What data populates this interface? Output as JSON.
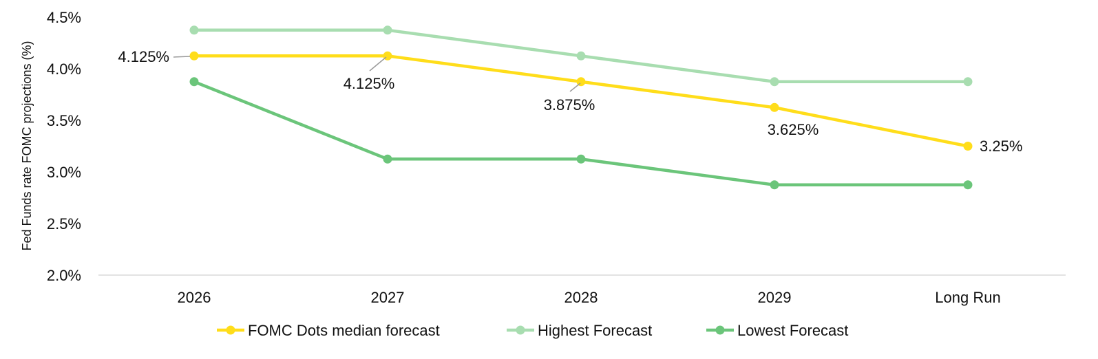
{
  "chart_data": {
    "type": "line",
    "categories": [
      "2026",
      "2027",
      "2028",
      "2029",
      "Long Run"
    ],
    "series": [
      {
        "name": "FOMC Dots median forecast",
        "values": [
          4.125,
          4.125,
          3.875,
          3.625,
          3.25
        ],
        "color": "#FFDD1A"
      },
      {
        "name": "Highest Forecast",
        "values": [
          4.375,
          4.375,
          4.125,
          3.875,
          3.875
        ],
        "color": "#A8DDB0"
      },
      {
        "name": "Lowest Forecast",
        "values": [
          3.875,
          3.125,
          3.125,
          2.875,
          2.875
        ],
        "color": "#6BC57A"
      }
    ],
    "ylabel": "Fed Funds rate FOMC projections (%)",
    "ylim": [
      2.0,
      4.5
    ],
    "yticks": [
      "2.0%",
      "2.5%",
      "3.0%",
      "3.5%",
      "4.0%",
      "4.5%"
    ],
    "data_labels": [
      {
        "series": 0,
        "index": 0,
        "text": "4.125%"
      },
      {
        "series": 0,
        "index": 1,
        "text": "4.125%"
      },
      {
        "series": 0,
        "index": 2,
        "text": "3.875%"
      },
      {
        "series": 0,
        "index": 3,
        "text": "3.625%"
      },
      {
        "series": 0,
        "index": 4,
        "text": "3.25%"
      }
    ],
    "grid": false,
    "legend_position": "bottom"
  }
}
